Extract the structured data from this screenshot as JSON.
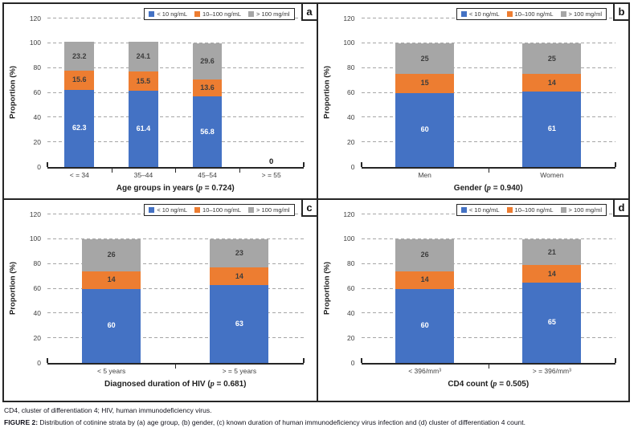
{
  "figure": {
    "y_axis_label": "Proportion (%)",
    "y_ticks": [
      0,
      20,
      40,
      60,
      80,
      100,
      120
    ],
    "y_max": 120,
    "legend": [
      {
        "name": "< 10 ng/mL",
        "color": "#4472C4"
      },
      {
        "name": "10–100 ng/mL",
        "color": "#ED7D31"
      },
      {
        "name": "> 100 mg/ml",
        "color": "#A6A6A6"
      }
    ],
    "colors": {
      "bar_blue": "#4472C4",
      "bar_orange": "#ED7D31",
      "bar_gray": "#A6A6A6",
      "axis": "#262626",
      "gridline": "#A6A6A6",
      "tick_text": "#404040"
    }
  },
  "chart_data": [
    {
      "type": "stacked-bar",
      "letter": "a",
      "title": "Age groups in years (p = 0.724)",
      "xlabel": {
        "pre": "Age groups in years (",
        "p": "p",
        "post": " = 0.724)"
      },
      "ylabel": "Proportion (%)",
      "ylim": [
        0,
        120
      ],
      "grid": true,
      "legend_position": "top-right",
      "categories": [
        "< = 34",
        "35–44",
        "45–54",
        "> = 55"
      ],
      "series": [
        {
          "name": "< 10 ng/mL",
          "color": "#4472C4",
          "values": [
            62.3,
            61.4,
            56.8,
            0
          ],
          "labels": [
            "62.3",
            "61.4",
            "56.8",
            ""
          ]
        },
        {
          "name": "10–100 ng/mL",
          "color": "#ED7D31",
          "values": [
            15.6,
            15.5,
            13.6,
            0
          ],
          "labels": [
            "15.6",
            "15.5",
            "13.6",
            ""
          ]
        },
        {
          "name": "> 100 mg/ml",
          "color": "#A6A6A6",
          "values": [
            23.2,
            24.1,
            29.6,
            0
          ],
          "labels": [
            "23.2",
            "24.1",
            "29.6",
            ""
          ]
        }
      ],
      "zero_labels": [
        "",
        "",
        "",
        "0"
      ]
    },
    {
      "type": "stacked-bar",
      "letter": "b",
      "title": "Gender (p = 0.940)",
      "xlabel": {
        "pre": "Gender (",
        "p": "p",
        "post": " = 0.940)"
      },
      "ylabel": "Proportion (%)",
      "ylim": [
        0,
        120
      ],
      "grid": true,
      "legend_position": "top-right",
      "categories": [
        "Men",
        "Women"
      ],
      "series": [
        {
          "name": "< 10 ng/mL",
          "color": "#4472C4",
          "values": [
            60,
            61
          ],
          "labels": [
            "60",
            "61"
          ]
        },
        {
          "name": "10–100 ng/mL",
          "color": "#ED7D31",
          "values": [
            15,
            14
          ],
          "labels": [
            "15",
            "14"
          ]
        },
        {
          "name": "> 100 mg/ml",
          "color": "#A6A6A6",
          "values": [
            25,
            25
          ],
          "labels": [
            "25",
            "25"
          ]
        }
      ],
      "zero_labels": [
        "",
        ""
      ]
    },
    {
      "type": "stacked-bar",
      "letter": "c",
      "title": "Diagnosed duration of HIV (p = 0.681)",
      "xlabel": {
        "pre": "Diagnosed duration of HIV (",
        "p": "p",
        "post": " = 0.681)"
      },
      "ylabel": "Proportion (%)",
      "ylim": [
        0,
        120
      ],
      "grid": true,
      "legend_position": "top-right",
      "categories": [
        "< 5 years",
        "> = 5 years"
      ],
      "series": [
        {
          "name": "< 10 ng/mL",
          "color": "#4472C4",
          "values": [
            60,
            63
          ],
          "labels": [
            "60",
            "63"
          ]
        },
        {
          "name": "10–100 ng/mL",
          "color": "#ED7D31",
          "values": [
            14,
            14
          ],
          "labels": [
            "14",
            "14"
          ]
        },
        {
          "name": "> 100 mg/ml",
          "color": "#A6A6A6",
          "values": [
            26,
            23
          ],
          "labels": [
            "26",
            "23"
          ]
        }
      ],
      "zero_labels": [
        "",
        ""
      ]
    },
    {
      "type": "stacked-bar",
      "letter": "d",
      "title": "CD4 count (p = 0.505)",
      "xlabel": {
        "pre": "CD4 count (",
        "p": "p",
        "post": " = 0.505)"
      },
      "ylabel": "Proportion (%)",
      "ylim": [
        0,
        120
      ],
      "grid": true,
      "legend_position": "top-right",
      "categories": [
        "< 396/mm³",
        "> = 396/mm³"
      ],
      "series": [
        {
          "name": "< 10 ng/mL",
          "color": "#4472C4",
          "values": [
            60,
            65
          ],
          "labels": [
            "60",
            "65"
          ]
        },
        {
          "name": "10–100 ng/mL",
          "color": "#ED7D31",
          "values": [
            14,
            14
          ],
          "labels": [
            "14",
            "14"
          ]
        },
        {
          "name": "> 100 mg/ml",
          "color": "#A6A6A6",
          "values": [
            26,
            21
          ],
          "labels": [
            "26",
            "21"
          ]
        }
      ],
      "zero_labels": [
        "",
        ""
      ]
    }
  ],
  "caption": {
    "line1": "CD4, cluster of differentiation 4; HIV, human immunodeficiency virus.",
    "line2_prefix": "FIGURE 2:",
    "line2_text": " Distribution of cotinine strata by (a) age group, (b) gender, (c) known duration of human immunodeficiency virus infection and (d) cluster of differentiation 4 count."
  }
}
